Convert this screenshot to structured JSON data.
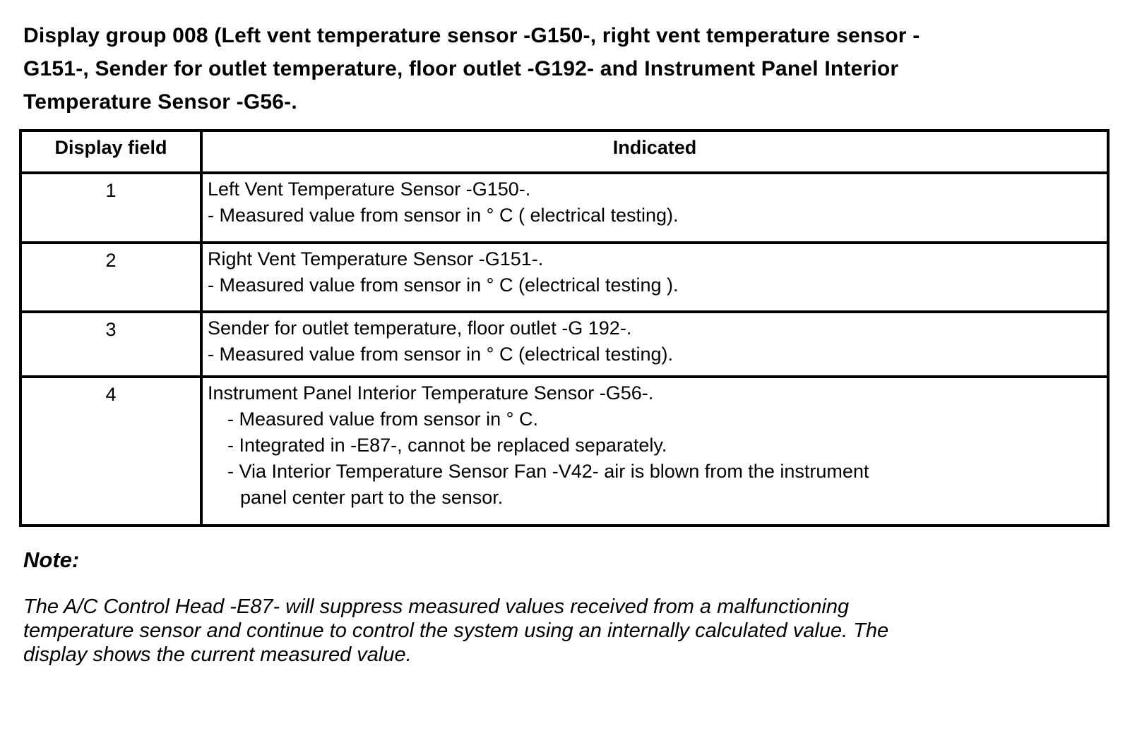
{
  "document": {
    "title_lines": [
      "Display group 008 (Left vent temperature sensor -G150-, right vent temperature sensor -",
      "G151-, Sender for outlet temperature, floor outlet -G192- and Instrument Panel Interior",
      "Temperature Sensor -G56-."
    ]
  },
  "table": {
    "col_headers": [
      "Display field",
      "Indicated"
    ],
    "rows": [
      {
        "field": "1",
        "lines": [
          "Left Vent Temperature Sensor -G150-.",
          "- Measured value from sensor in ° C ( electrical testing)."
        ]
      },
      {
        "field": "2",
        "lines": [
          "Right Vent Temperature Sensor -G151-.",
          "- Measured value from sensor in ° C (electrical testing )."
        ]
      },
      {
        "field": "3",
        "lines": [
          "Sender for outlet temperature, floor outlet -G 192-.",
          "- Measured value from sensor in ° C (electrical testing)."
        ]
      },
      {
        "field": "4",
        "lines": [
          "Instrument Panel Interior Temperature Sensor -G56-.",
          "- Measured value from sensor in ° C.",
          "- Integrated in -E87-, cannot be replaced separately.",
          "- Via Interior Temperature Sensor Fan -V42- air is blown from the instrument",
          "panel center part to the sensor."
        ]
      }
    ]
  },
  "note": {
    "heading": "Note:",
    "body_lines": [
      "The A/C Control Head -E87- will suppress measured values received from a malfunctioning",
      "temperature sensor and continue to control the system using an internally calculated value. The",
      "display shows the current measured value."
    ]
  },
  "colors": {
    "text": "#000000",
    "background": "#ffffff",
    "border": "#000000"
  }
}
